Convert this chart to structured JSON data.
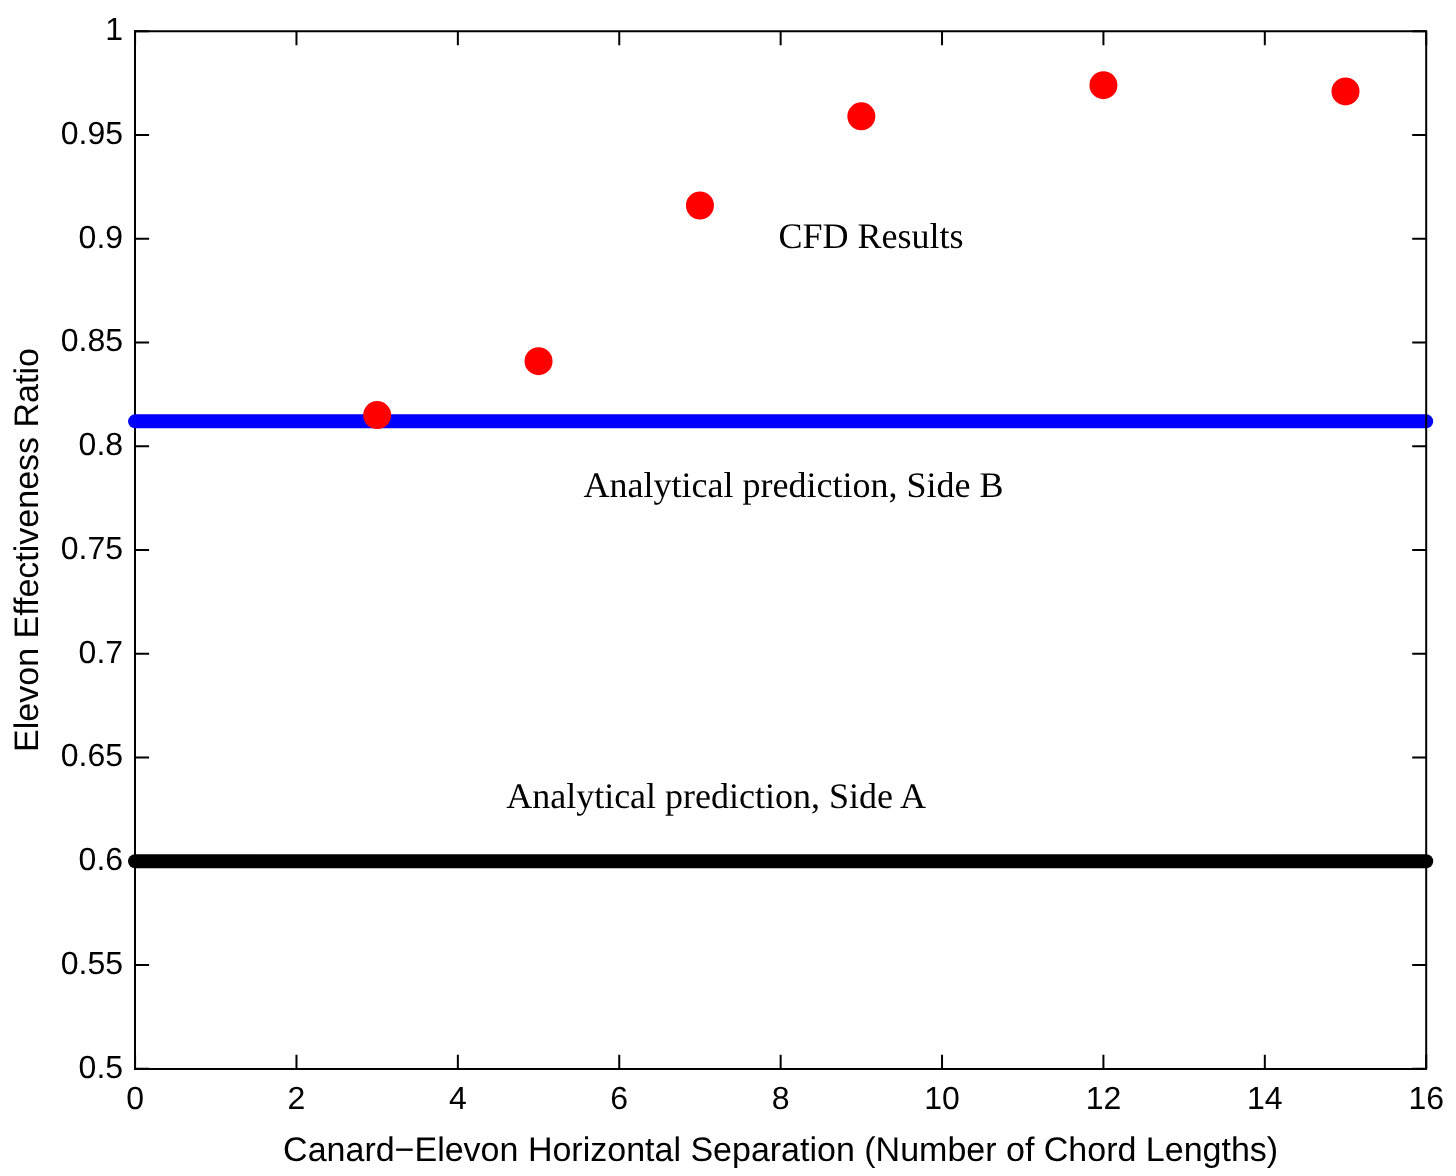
{
  "chart_data": {
    "type": "scatter",
    "xlabel": "Canard−Elevon Horizontal Separation (Number of Chord Lengths)",
    "ylabel": "Elevon Effectiveness Ratio",
    "xlim": [
      0,
      16
    ],
    "xticks": [
      0,
      2,
      4,
      6,
      8,
      10,
      12,
      14,
      16
    ],
    "ylim": [
      0.5,
      1
    ],
    "yticks": [
      0.5,
      0.55,
      0.6,
      0.65,
      0.7,
      0.75,
      0.8,
      0.85,
      0.9,
      0.95,
      1
    ],
    "grid": false,
    "legend": false,
    "series": [
      {
        "color": "#ff0000",
        "marker": "circle",
        "x": [
          3,
          5,
          7,
          9,
          12,
          15
        ],
        "values": [
          0.815,
          0.841,
          0.916,
          0.959,
          0.974,
          0.971
        ]
      },
      {
        "type": "line",
        "color": "#0000ff",
        "marker": "none",
        "line_style": "solid",
        "x": [
          0,
          16
        ],
        "values": [
          0.812,
          0.812
        ]
      },
      {
        "type": "line",
        "color": "#000000",
        "marker": "none",
        "line_style": "solid",
        "x": [
          0,
          16
        ],
        "values": [
          0.6,
          0.6
        ]
      }
    ],
    "annotations": [
      "CFD Results",
      "Analytical prediction, Side B",
      "Analytical prediction, Side A"
    ]
  }
}
